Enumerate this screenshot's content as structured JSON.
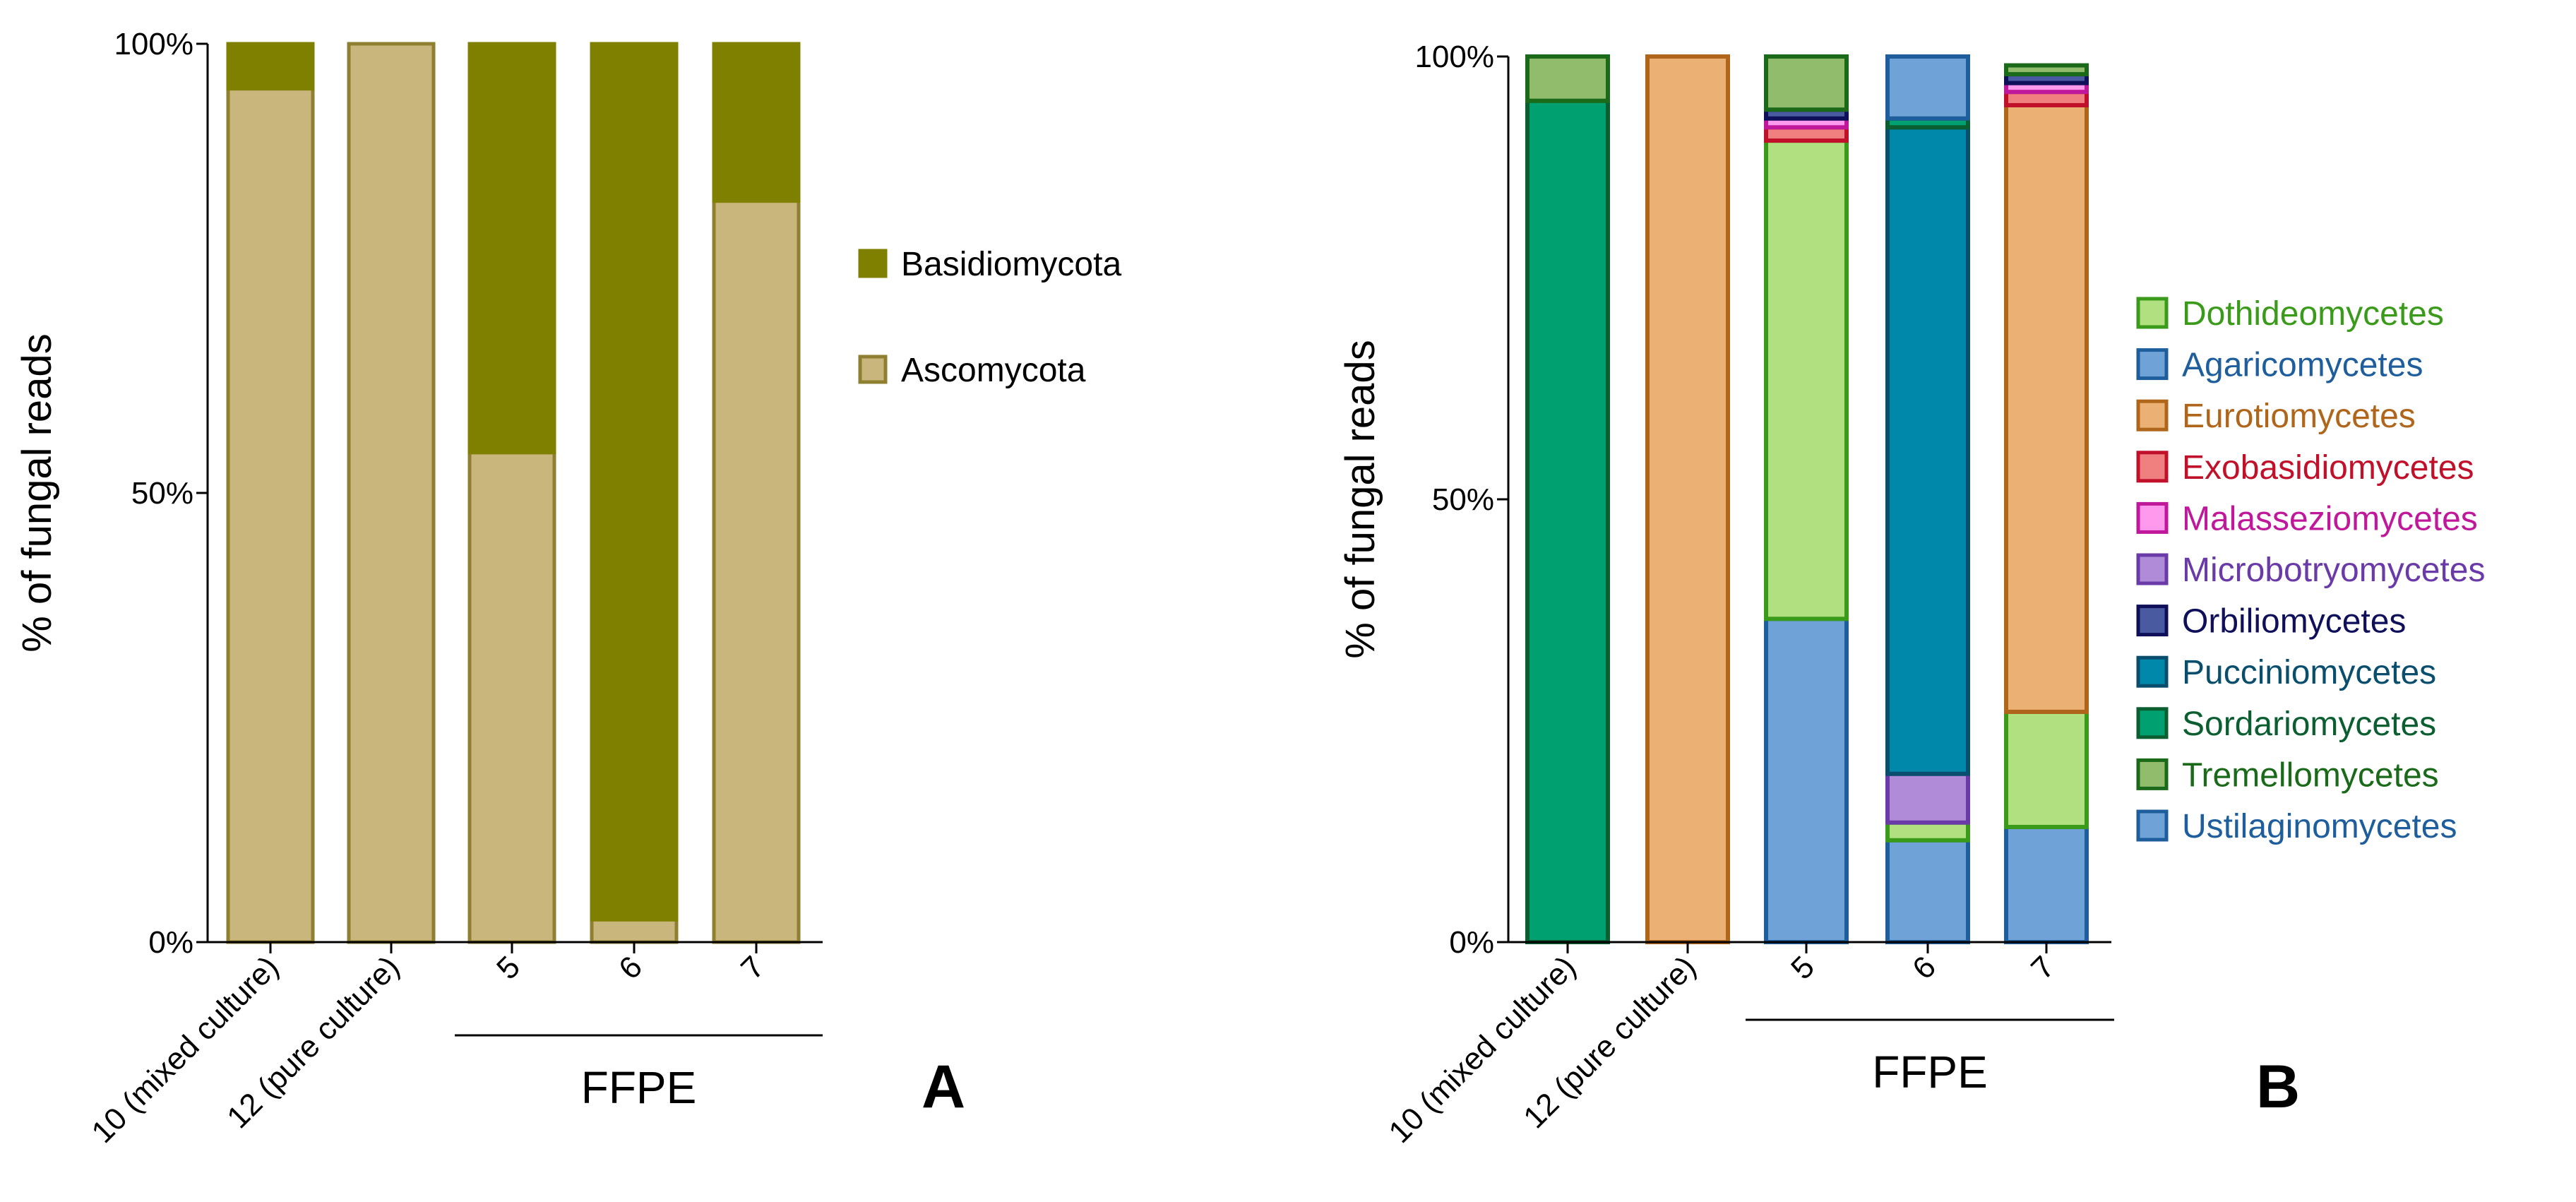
{
  "figure": {
    "panel_labels": [
      "A",
      "B"
    ],
    "group_label": "FFPE"
  },
  "chart_data": [
    {
      "type": "bar",
      "stacked": true,
      "panel": "A",
      "title": "",
      "xlabel": "",
      "ylabel": "% of fungal reads",
      "ylim": [
        0,
        100
      ],
      "yticks": [
        "0%",
        "50%",
        "100%"
      ],
      "categories": [
        "10 (mixed culture)",
        "12 (pure culture)",
        "5",
        "6",
        "7"
      ],
      "group": {
        "label": "FFPE",
        "categories": [
          "5",
          "6",
          "7"
        ]
      },
      "legend_position": "right",
      "series": [
        {
          "name": "Ascomycota",
          "fill": "#C8B67D",
          "stroke": "#8F7F30",
          "values": [
            95,
            100,
            54.5,
            2.5,
            82.5
          ]
        },
        {
          "name": "Basidiomycota",
          "fill": "#808000",
          "stroke": "#808000",
          "values": [
            5,
            0,
            45.5,
            97.5,
            17.5
          ]
        }
      ],
      "legend_order": [
        "Basidiomycota",
        "Ascomycota"
      ]
    },
    {
      "type": "bar",
      "stacked": true,
      "panel": "B",
      "title": "",
      "xlabel": "",
      "ylabel": "% of fungal reads",
      "ylim": [
        0,
        100
      ],
      "yticks": [
        "0%",
        "50%",
        "100%"
      ],
      "categories": [
        "10 (mixed culture)",
        "12 (pure culture)",
        "5",
        "6",
        "7"
      ],
      "group": {
        "label": "FFPE",
        "categories": [
          "5",
          "6",
          "7"
        ]
      },
      "legend_position": "right",
      "series": [
        {
          "name": "Ustilaginomycetes",
          "fill": "#6FA3D8",
          "stroke": "#1F5E9C",
          "text_color": "#1F5E9C",
          "values": [
            0,
            0,
            36.5,
            11.5,
            13
          ]
        },
        {
          "name": "Dothideomycetes",
          "fill": "#B0E080",
          "stroke": "#3A9A1A",
          "text_color": "#3A9A1A",
          "values": [
            0,
            0,
            54,
            2,
            13
          ]
        },
        {
          "name": "Microbotryomycetes",
          "fill": "#B08CD8",
          "stroke": "#6A3AA8",
          "text_color": "#6A3AA8",
          "values": [
            0,
            0,
            0,
            5.5,
            0
          ]
        },
        {
          "name": "Pucciniomycetes",
          "fill": "#0088AA",
          "stroke": "#0A4E6E",
          "text_color": "#0A4E6E",
          "values": [
            0,
            0,
            0,
            73,
            0
          ]
        },
        {
          "name": "Sordariomycetes",
          "fill": "#00A070",
          "stroke": "#0A5E30",
          "text_color": "#0A5E30",
          "values": [
            95,
            0,
            0,
            1,
            0
          ]
        },
        {
          "name": "Eurotiomycetes",
          "fill": "#EBB073",
          "stroke": "#B0661A",
          "text_color": "#B0661A",
          "values": [
            0,
            100,
            0,
            0,
            68.5
          ]
        },
        {
          "name": "Exobasidiomycetes",
          "fill": "#F08080",
          "stroke": "#C0102A",
          "text_color": "#C0102A",
          "values": [
            0,
            0,
            1.5,
            0,
            1.5
          ]
        },
        {
          "name": "Malasseziomycetes",
          "fill": "#FF99EE",
          "stroke": "#C0189A",
          "text_color": "#C0189A",
          "values": [
            0,
            0,
            1,
            0,
            1
          ]
        },
        {
          "name": "Orbiliomycetes",
          "fill": "#4A5AA0",
          "stroke": "#10105A",
          "text_color": "#10105A",
          "values": [
            0,
            0,
            1,
            0,
            1
          ]
        },
        {
          "name": "Tremellomycetes",
          "fill": "#90BC6C",
          "stroke": "#1A6A1A",
          "text_color": "#1A6A1A",
          "values": [
            5,
            0,
            6,
            0,
            1
          ]
        },
        {
          "name": "Agaricomycetes",
          "fill": "#6FA3D8",
          "stroke": "#1F5E9C",
          "text_color": "#1F5E9C",
          "values": [
            0,
            0,
            0,
            7,
            0
          ]
        }
      ],
      "legend_order": [
        "Dothideomycetes",
        "Agaricomycetes",
        "Eurotiomycetes",
        "Exobasidiomycetes",
        "Malasseziomycetes",
        "Microbotryomycetes",
        "Orbiliomycetes",
        "Pucciniomycetes",
        "Sordariomycetes",
        "Tremellomycetes",
        "Ustilaginomycetes"
      ]
    }
  ]
}
